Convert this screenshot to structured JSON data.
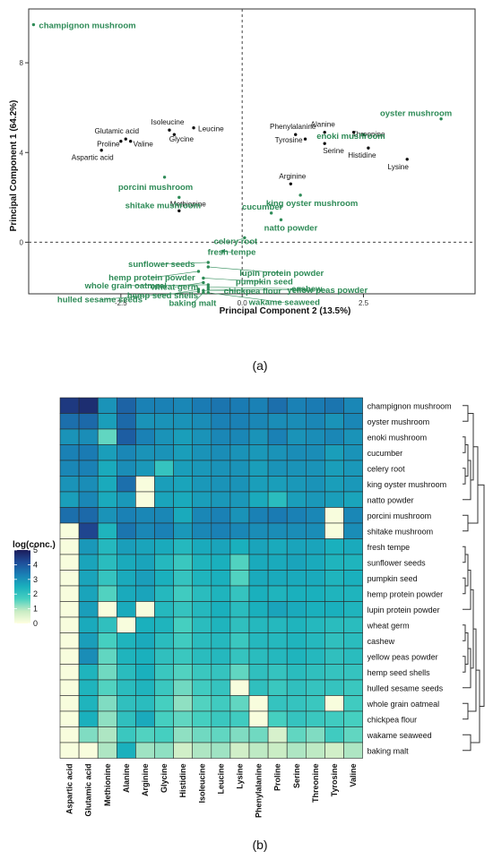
{
  "panel_labels": {
    "a": "(a)",
    "b": "(b)"
  },
  "colors": {
    "sample": "#2e8b57",
    "variable": "#111111",
    "heat_scale": [
      "#ffffe0",
      "#c8ecc4",
      "#47d0c0",
      "#1ab0bd",
      "#1a7fb5",
      "#1f4d99",
      "#1c1c5a"
    ]
  },
  "chart_data": [
    {
      "type": "scatter",
      "xlabel": "Principal Component 2 (13.5%)",
      "ylabel": "Principal Component 1 (64.2%)",
      "xlim": [
        -4.4,
        4.8
      ],
      "ylim": [
        -2.3,
        10.4
      ],
      "x_ticks": [
        -2.5,
        0,
        2.5
      ],
      "y_ticks": [
        0,
        4,
        8
      ],
      "x_tick_labels": [
        "-2.5",
        "0.0",
        "2.5"
      ],
      "y_tick_labels": [
        "0",
        "4",
        "8"
      ],
      "reference_lines": {
        "x": 0,
        "y": 0,
        "style": "dashed"
      },
      "series": [
        {
          "name": "",
          "role": "variables",
          "points": [
            {
              "label": "Isoleucine",
              "x": -1.5,
              "y": 5.0
            },
            {
              "label": "Leucine",
              "x": -1.0,
              "y": 5.1
            },
            {
              "label": "Glutamic acid",
              "x": -2.4,
              "y": 4.6
            },
            {
              "label": "Glycine",
              "x": -1.4,
              "y": 4.8
            },
            {
              "label": "Proline",
              "x": -2.5,
              "y": 4.5
            },
            {
              "label": "Valine",
              "x": -2.3,
              "y": 4.5
            },
            {
              "label": "Aspartic acid",
              "x": -2.9,
              "y": 4.1
            },
            {
              "label": "Phenylalanine",
              "x": 1.1,
              "y": 4.8
            },
            {
              "label": "Alanine",
              "x": 1.7,
              "y": 4.9
            },
            {
              "label": "Threonine",
              "x": 2.3,
              "y": 4.9
            },
            {
              "label": "Tyrosine",
              "x": 1.3,
              "y": 4.6
            },
            {
              "label": "Serine",
              "x": 1.7,
              "y": 4.4
            },
            {
              "label": "Histidine",
              "x": 2.6,
              "y": 4.2
            },
            {
              "label": "Lysine",
              "x": 3.4,
              "y": 3.7
            },
            {
              "label": "Arginine",
              "x": 1.0,
              "y": 2.6
            },
            {
              "label": "Methionine",
              "x": -1.3,
              "y": 1.4
            }
          ]
        },
        {
          "name": "",
          "role": "samples",
          "points": [
            {
              "label": "champignon mushroom",
              "x": -4.3,
              "y": 9.7
            },
            {
              "label": "oyster mushroom",
              "x": 4.1,
              "y": 5.5
            },
            {
              "label": "enoki mushroom",
              "x": 2.5,
              "y": 4.8
            },
            {
              "label": "porcini mushroom",
              "x": -1.6,
              "y": 2.9
            },
            {
              "label": "shitake mushroom",
              "x": -1.3,
              "y": 2.0
            },
            {
              "label": "king oyster mushroom",
              "x": 1.2,
              "y": 2.1
            },
            {
              "label": "cucumber",
              "x": 0.6,
              "y": 1.3
            },
            {
              "label": "natto powder",
              "x": 0.8,
              "y": 1.0
            },
            {
              "label": "celery root",
              "x": 0.05,
              "y": 0.2
            },
            {
              "label": "fresh tempe",
              "x": -0.4,
              "y": -0.4
            },
            {
              "label": "sunflower seeds",
              "x": -0.7,
              "y": -0.9
            },
            {
              "label": "lupin protein powder",
              "x": -0.7,
              "y": -1.1
            },
            {
              "label": "hemp protein powder",
              "x": -0.9,
              "y": -1.3
            },
            {
              "label": "pumpkin seed",
              "x": -0.8,
              "y": -1.6
            },
            {
              "label": "wheat germ",
              "x": -0.8,
              "y": -1.8
            },
            {
              "label": "whole grain oatmeal",
              "x": -0.7,
              "y": -1.9
            },
            {
              "label": "cashew",
              "x": -0.7,
              "y": -2.0
            },
            {
              "label": "hemp seed shells",
              "x": -0.9,
              "y": -2.1
            },
            {
              "label": "chickpea flour",
              "x": -0.8,
              "y": -2.15
            },
            {
              "label": "yellow peas powder",
              "x": -0.7,
              "y": -2.1
            },
            {
              "label": "hulled sesame seeds",
              "x": -0.9,
              "y": -2.2
            },
            {
              "label": "baking malt",
              "x": -0.8,
              "y": -2.25
            },
            {
              "label": "wakame seaweed",
              "x": -0.7,
              "y": -2.25
            }
          ]
        }
      ]
    },
    {
      "type": "heatmap",
      "legend_title": "log(conc.)",
      "legend_ticks": [
        0,
        1,
        2,
        3,
        4,
        5
      ],
      "zlim": [
        0,
        5
      ],
      "rows": [
        "champignon mushroom",
        "oyster mushroom",
        "enoki mushroom",
        "cucumber",
        "celery root",
        "king oyster mushroom",
        "natto powder",
        "porcini mushroom",
        "shitake mushroom",
        "fresh tempe",
        "sunflower seeds",
        "pumpkin seed",
        "hemp protein powder",
        "lupin protein powder",
        "wheat germ",
        "cashew",
        "yellow peas powder",
        "hemp seed shells",
        "hulled sesame seeds",
        "whole grain oatmeal",
        "chickpea flour",
        "wakame seaweed",
        "baking malt"
      ],
      "columns": [
        "Aspartic acid",
        "Glutamic acid",
        "Methionine",
        "Alanine",
        "Arginine",
        "Glycine",
        "Histidine",
        "Isoleucine",
        "Leucine",
        "Lysine",
        "Phenylalanine",
        "Proline",
        "Serine",
        "Threonine",
        "Tyrosine",
        "Valine"
      ],
      "values": [
        [
          4.5,
          4.7,
          3.0,
          3.8,
          3.3,
          3.3,
          3.2,
          3.4,
          3.5,
          3.4,
          3.3,
          3.6,
          3.3,
          3.4,
          3.5,
          3.2
        ],
        [
          3.6,
          3.7,
          2.8,
          3.7,
          3.0,
          3.0,
          3.0,
          3.1,
          3.3,
          3.3,
          3.2,
          3.1,
          3.1,
          3.2,
          3.0,
          3.2
        ],
        [
          3.0,
          3.1,
          1.5,
          3.9,
          3.3,
          3.0,
          2.8,
          3.0,
          3.2,
          3.2,
          3.0,
          3.3,
          3.0,
          3.1,
          3.2,
          3.0
        ],
        [
          3.3,
          3.4,
          2.8,
          3.2,
          3.0,
          3.0,
          2.8,
          3.0,
          3.1,
          3.0,
          2.9,
          3.0,
          3.1,
          3.1,
          2.8,
          3.0
        ],
        [
          3.2,
          3.3,
          2.6,
          3.1,
          2.9,
          2.0,
          2.8,
          2.9,
          3.0,
          3.0,
          2.8,
          3.0,
          3.0,
          3.0,
          2.8,
          2.9
        ],
        [
          3.0,
          3.1,
          2.6,
          3.6,
          0.1,
          2.8,
          2.7,
          2.9,
          3.0,
          3.0,
          2.8,
          2.8,
          2.9,
          3.0,
          2.8,
          2.9
        ],
        [
          2.8,
          3.2,
          2.6,
          2.9,
          0.1,
          2.7,
          2.6,
          2.8,
          2.9,
          2.9,
          2.6,
          2.2,
          2.8,
          2.9,
          2.8,
          2.7
        ],
        [
          3.6,
          3.7,
          3.0,
          3.3,
          3.2,
          3.2,
          2.6,
          3.2,
          3.3,
          3.0,
          3.3,
          3.4,
          3.3,
          3.2,
          0.1,
          3.2
        ],
        [
          0.1,
          4.3,
          2.4,
          3.5,
          3.2,
          3.3,
          2.9,
          3.2,
          3.3,
          3.2,
          3.1,
          3.1,
          3.1,
          3.1,
          0.1,
          3.1
        ],
        [
          0.1,
          2.9,
          2.3,
          2.8,
          2.7,
          2.6,
          2.3,
          2.6,
          2.7,
          2.5,
          2.7,
          2.6,
          2.7,
          2.7,
          2.5,
          2.6
        ],
        [
          0.1,
          2.7,
          2.2,
          2.6,
          2.7,
          2.3,
          1.9,
          2.4,
          2.5,
          1.6,
          2.6,
          2.6,
          2.7,
          2.6,
          2.4,
          2.4
        ],
        [
          0.1,
          2.7,
          2.0,
          2.6,
          2.8,
          2.5,
          2.0,
          2.4,
          2.5,
          1.6,
          2.6,
          2.6,
          2.6,
          2.6,
          2.4,
          2.5
        ],
        [
          0.1,
          2.7,
          1.6,
          2.6,
          2.7,
          2.3,
          1.8,
          2.2,
          2.4,
          2.0,
          2.5,
          2.4,
          2.5,
          2.5,
          2.4,
          2.4
        ],
        [
          0.1,
          2.8,
          0.1,
          2.6,
          0.1,
          2.3,
          2.0,
          2.3,
          2.5,
          2.2,
          2.5,
          2.7,
          2.6,
          2.5,
          2.5,
          2.4
        ],
        [
          0.1,
          2.6,
          2.1,
          0.1,
          2.5,
          2.4,
          1.7,
          2.2,
          2.4,
          2.1,
          2.3,
          2.3,
          2.4,
          2.3,
          2.2,
          2.2
        ],
        [
          0.1,
          2.8,
          1.7,
          2.4,
          2.6,
          2.2,
          1.8,
          2.2,
          2.3,
          1.9,
          2.3,
          2.3,
          2.4,
          2.3,
          2.1,
          2.2
        ],
        [
          0.1,
          3.1,
          1.5,
          2.4,
          2.5,
          2.1,
          1.9,
          2.2,
          2.3,
          2.0,
          2.2,
          2.3,
          2.4,
          2.3,
          2.1,
          2.2
        ],
        [
          0.1,
          2.4,
          1.4,
          2.2,
          2.5,
          1.9,
          1.6,
          1.9,
          2.0,
          1.5,
          2.1,
          2.0,
          2.2,
          2.1,
          2.0,
          2.0
        ],
        [
          0.1,
          2.4,
          1.6,
          2.2,
          2.4,
          1.9,
          1.4,
          1.8,
          2.0,
          0.1,
          2.1,
          1.9,
          2.1,
          2.0,
          2.0,
          1.9
        ],
        [
          0.1,
          2.4,
          1.3,
          2.1,
          2.2,
          1.7,
          1.2,
          1.6,
          1.8,
          1.5,
          0.1,
          2.0,
          2.0,
          1.9,
          0.1,
          1.8
        ],
        [
          0.1,
          2.5,
          1.2,
          2.1,
          2.6,
          1.7,
          1.5,
          1.7,
          1.9,
          1.8,
          0.1,
          1.7,
          2.0,
          1.9,
          1.8,
          1.7
        ],
        [
          0.1,
          1.3,
          1.0,
          1.9,
          1.6,
          1.7,
          1.2,
          1.4,
          1.5,
          1.3,
          1.4,
          0.6,
          1.5,
          1.3,
          1.8,
          1.5
        ],
        [
          0.1,
          0.1,
          1.0,
          2.5,
          1.1,
          1.2,
          0.7,
          1.0,
          1.1,
          0.7,
          0.9,
          0.8,
          1.0,
          0.9,
          0.7,
          1.0
        ]
      ]
    }
  ]
}
